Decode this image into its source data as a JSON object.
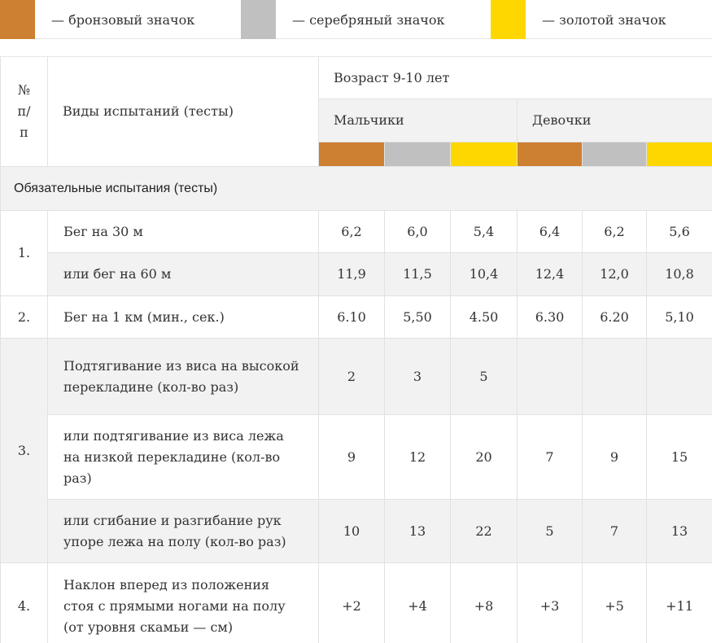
{
  "legend": [
    {
      "label": "— бронзовый значок",
      "color": "#cd7f32"
    },
    {
      "label": "— серебряный значок",
      "color": "#c0c0c0"
    },
    {
      "label": "— золотой значок",
      "color": "#ffd700"
    }
  ],
  "header": {
    "num_label": "№ п/п",
    "tests_label": "Виды испытаний (тесты)",
    "age_label": "Возраст 9-10 лет",
    "boys_label": "Мальчики",
    "girls_label": "Девочки"
  },
  "section_title": "Обязательные испытания (тесты)",
  "rows": [
    {
      "num": "1.",
      "name": "Бег на 30 м",
      "values": [
        "6,2",
        "6,0",
        "5,4",
        "6,4",
        "6,2",
        "5,6"
      ]
    },
    {
      "num": "",
      "name": "или бег на 60 м",
      "values": [
        "11,9",
        "11,5",
        "10,4",
        "12,4",
        "12,0",
        "10,8"
      ]
    },
    {
      "num": "2.",
      "name": "Бег на 1 км (мин., сек.)",
      "values": [
        "6.10",
        "5,50",
        "4.50",
        "6.30",
        "6.20",
        "5,10"
      ]
    },
    {
      "num": "3.",
      "name": "Подтягивание из виса на высокой перекладине (кол-во раз)",
      "values": [
        "2",
        "3",
        "5",
        "",
        "",
        ""
      ]
    },
    {
      "num": "",
      "name": "или подтягивание из виса лежа на низкой перекладине (кол-во раз)",
      "values": [
        "9",
        "12",
        "20",
        "7",
        "9",
        "15"
      ]
    },
    {
      "num": "",
      "name": "или сгибание и разгибание рук упоре лежа на полу (кол-во раз)",
      "values": [
        "10",
        "13",
        "22",
        "5",
        "7",
        "13"
      ]
    },
    {
      "num": "4.",
      "name": "Наклон вперед из положения стоя с прямыми ногами на полу (от уровня скамьи — см)",
      "values": [
        "+2",
        "+4",
        "+8",
        "+3",
        "+5",
        "+11"
      ]
    }
  ]
}
